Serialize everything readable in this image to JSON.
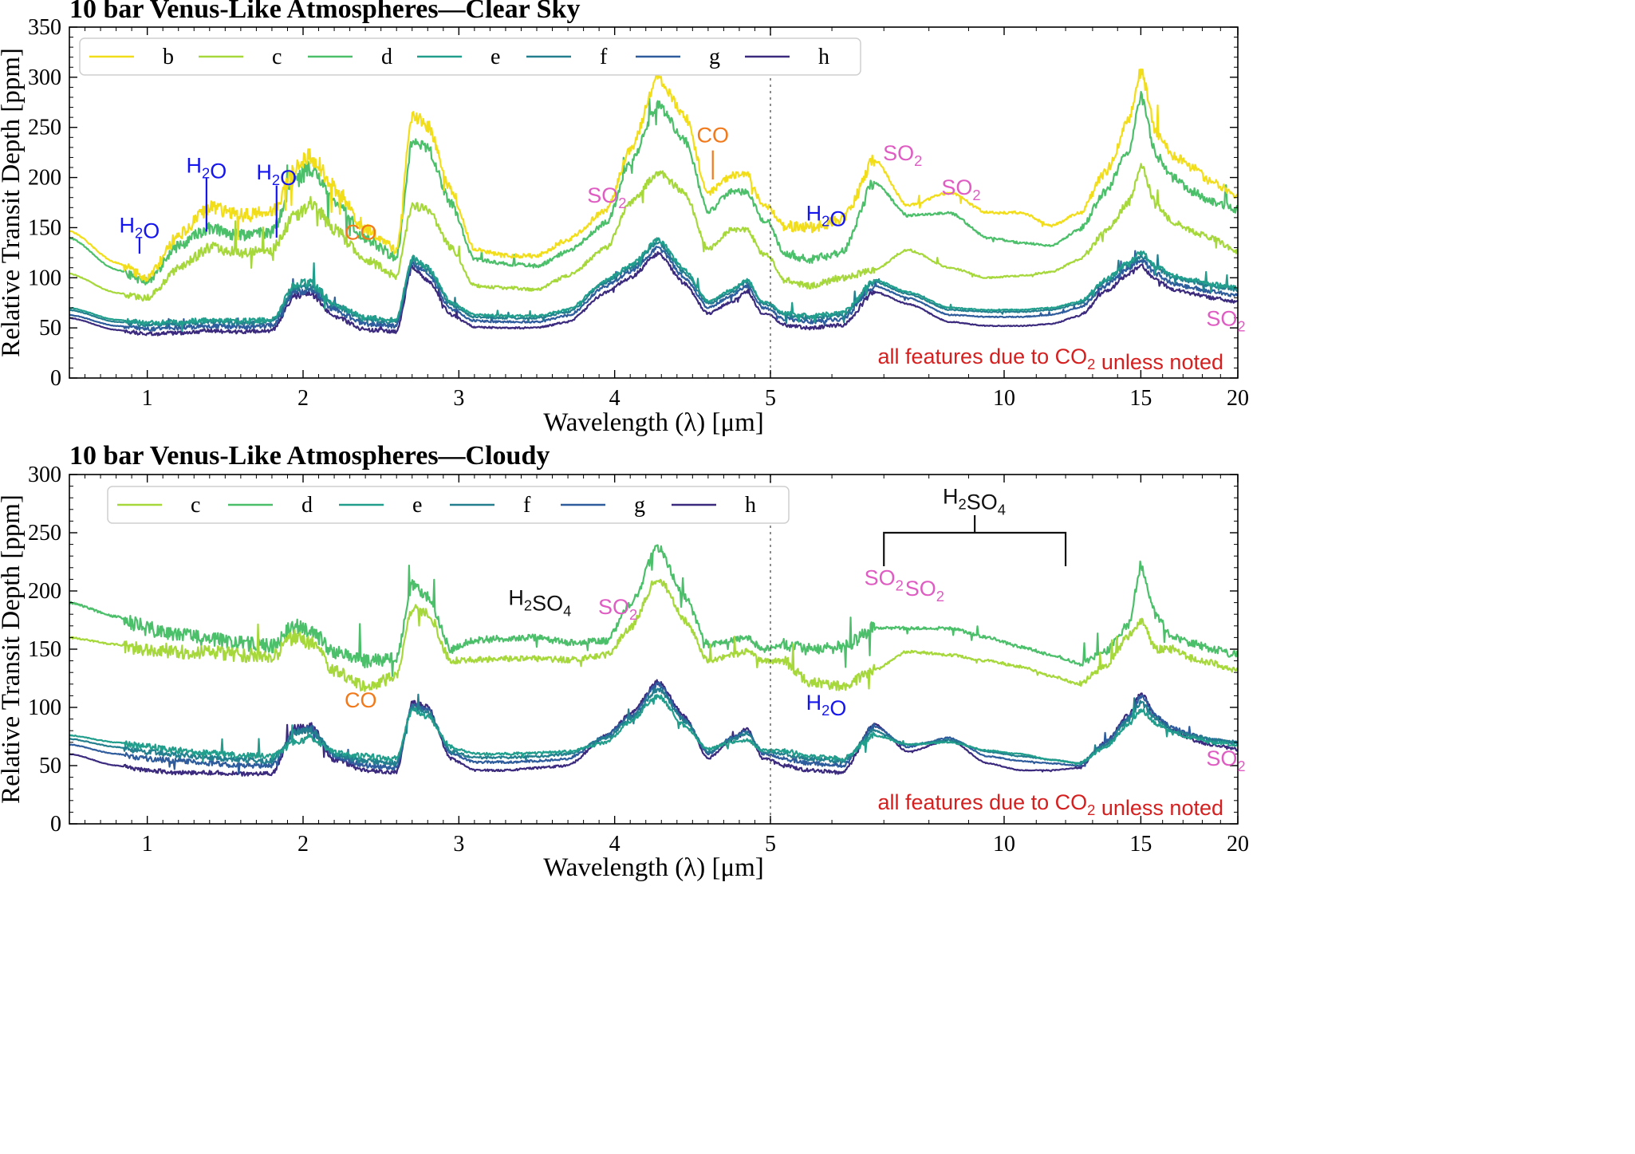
{
  "colors": {
    "b": "#f2dd1a",
    "c": "#a6d83c",
    "d": "#4cbf6a",
    "e": "#229e8c",
    "f": "#237f8e",
    "g": "#2f5c9c",
    "h": "#3b2a7d",
    "h2o": "#1515ee",
    "co": "#f2791a",
    "so2": "#df5cc2",
    "note": "#d61f1f",
    "h2so4": "#111111"
  },
  "chart_data": [
    {
      "type": "line",
      "title": "10 bar Venus-Like Atmospheres—Clear Sky",
      "xlabel": "Wavelength (λ) [μm]",
      "ylabel": "Relative Transit Depth [ppm]",
      "xscale": "piecewise: linear 0.5-5 μm, log 5-20 μm",
      "ylim": [
        0,
        350
      ],
      "yticks": [
        "0",
        "50",
        "100",
        "150",
        "200",
        "250",
        "300",
        "350"
      ],
      "xticks": [
        "1",
        "2",
        "3",
        "4",
        "5",
        "10",
        "15",
        "20"
      ],
      "legend_location": "top-left",
      "note": "all features due to CO₂ unless noted",
      "divider_at_um": 5,
      "x_um": [
        0.5,
        0.8,
        1.0,
        1.2,
        1.4,
        1.6,
        1.8,
        1.95,
        2.05,
        2.2,
        2.4,
        2.6,
        2.7,
        2.8,
        2.95,
        3.1,
        3.3,
        3.5,
        3.7,
        3.95,
        4.1,
        4.28,
        4.45,
        4.6,
        4.75,
        4.85,
        4.95,
        5.2,
        5.6,
        6.2,
        6.8,
        7.5,
        8.5,
        9.5,
        10.5,
        11.5,
        12.5,
        13.5,
        14.5,
        15.0,
        15.7,
        16.5,
        17.5,
        18.5,
        20.0
      ],
      "series": [
        {
          "name": "b",
          "values": [
            147,
            115,
            100,
            142,
            170,
            162,
            165,
            208,
            222,
            190,
            150,
            128,
            262,
            252,
            188,
            128,
            122,
            122,
            138,
            168,
            228,
            300,
            262,
            185,
            202,
            203,
            172,
            152,
            150,
            158,
            218,
            172,
            185,
            165,
            165,
            152,
            165,
            205,
            258,
            306,
            245,
            222,
            210,
            195,
            182
          ]
        },
        {
          "name": "c",
          "values": [
            104,
            85,
            80,
            110,
            130,
            125,
            128,
            162,
            175,
            148,
            118,
            102,
            172,
            168,
            130,
            92,
            90,
            88,
            102,
            130,
            175,
            205,
            185,
            128,
            148,
            148,
            124,
            98,
            92,
            100,
            108,
            128,
            110,
            100,
            102,
            106,
            118,
            146,
            176,
            212,
            172,
            156,
            146,
            140,
            126
          ]
        },
        {
          "name": "d",
          "values": [
            140,
            108,
            96,
            132,
            150,
            142,
            145,
            196,
            210,
            178,
            140,
            120,
            236,
            230,
            174,
            118,
            114,
            112,
            126,
            155,
            215,
            272,
            238,
            166,
            186,
            186,
            158,
            125,
            118,
            126,
            196,
            162,
            165,
            140,
            135,
            132,
            148,
            186,
            228,
            280,
            222,
            200,
            186,
            176,
            168
          ]
        },
        {
          "name": "e",
          "values": [
            70,
            58,
            55,
            56,
            58,
            57,
            58,
            94,
            95,
            74,
            60,
            58,
            120,
            110,
            75,
            63,
            62,
            62,
            68,
            98,
            112,
            138,
            108,
            76,
            88,
            98,
            76,
            65,
            62,
            65,
            98,
            86,
            70,
            68,
            68,
            70,
            76,
            98,
            116,
            125,
            112,
            102,
            98,
            94,
            90
          ]
        },
        {
          "name": "f",
          "values": [
            68,
            56,
            53,
            54,
            56,
            55,
            56,
            90,
            92,
            72,
            58,
            56,
            118,
            108,
            73,
            61,
            60,
            60,
            66,
            96,
            110,
            135,
            105,
            74,
            86,
            96,
            74,
            63,
            60,
            63,
            96,
            84,
            68,
            66,
            66,
            68,
            74,
            96,
            114,
            122,
            110,
            100,
            96,
            92,
            88
          ]
        },
        {
          "name": "g",
          "values": [
            63,
            52,
            49,
            50,
            52,
            51,
            52,
            86,
            88,
            68,
            54,
            52,
            114,
            104,
            69,
            57,
            56,
            56,
            62,
            92,
            106,
            130,
            100,
            70,
            82,
            92,
            70,
            59,
            56,
            59,
            92,
            80,
            63,
            61,
            61,
            63,
            70,
            92,
            110,
            118,
            104,
            94,
            90,
            86,
            82
          ]
        },
        {
          "name": "h",
          "values": [
            60,
            48,
            44,
            45,
            47,
            46,
            47,
            82,
            84,
            62,
            48,
            46,
            110,
            98,
            63,
            51,
            50,
            50,
            56,
            86,
            100,
            124,
            94,
            64,
            76,
            86,
            64,
            53,
            50,
            53,
            86,
            74,
            56,
            52,
            52,
            54,
            62,
            86,
            104,
            112,
            98,
            88,
            84,
            80,
            76
          ]
        }
      ],
      "annotations": [
        {
          "text": "H₂O",
          "x_um": 0.95,
          "y": 145,
          "color": "h2o"
        },
        {
          "text": "H₂O",
          "x_um": 1.38,
          "y": 205,
          "color": "h2o"
        },
        {
          "text": "H₂O",
          "x_um": 1.83,
          "y": 198,
          "color": "h2o"
        },
        {
          "text": "CO",
          "x_um": 2.37,
          "y": 138,
          "color": "co"
        },
        {
          "text": "SO₂",
          "x_um": 3.95,
          "y": 175,
          "color": "so2"
        },
        {
          "text": "CO",
          "x_um": 4.63,
          "y": 235,
          "color": "co"
        },
        {
          "text": "H₂O",
          "x_um": 5.9,
          "y": 157,
          "color": "h2o"
        },
        {
          "text": "SO₂",
          "x_um": 7.4,
          "y": 217,
          "color": "so2"
        },
        {
          "text": "SO₂",
          "x_um": 8.8,
          "y": 183,
          "color": "so2"
        },
        {
          "text": "SO₂",
          "x_um": 19.3,
          "y": 52,
          "color": "so2"
        }
      ]
    },
    {
      "type": "line",
      "title": "10 bar Venus-Like Atmospheres—Cloudy",
      "xlabel": "Wavelength (λ) [μm]",
      "ylabel": "Relative Transit Depth [ppm]",
      "xscale": "piecewise: linear 0.5-5 μm, log 5-20 μm",
      "ylim": [
        0,
        300
      ],
      "yticks": [
        "0",
        "50",
        "100",
        "150",
        "200",
        "250",
        "300"
      ],
      "xticks": [
        "1",
        "2",
        "3",
        "4",
        "5",
        "10",
        "15",
        "20"
      ],
      "legend_location": "top-left",
      "note": "all features due to CO₂ unless noted",
      "divider_at_um": 5,
      "x_um": [
        0.5,
        0.8,
        1.0,
        1.2,
        1.4,
        1.6,
        1.8,
        1.95,
        2.05,
        2.2,
        2.4,
        2.6,
        2.7,
        2.8,
        2.95,
        3.1,
        3.3,
        3.5,
        3.7,
        3.95,
        4.1,
        4.28,
        4.45,
        4.6,
        4.75,
        4.85,
        4.95,
        5.2,
        5.6,
        6.2,
        6.8,
        7.5,
        8.5,
        9.5,
        10.5,
        11.5,
        12.5,
        13.5,
        14.5,
        15.0,
        15.7,
        16.5,
        17.5,
        18.5,
        20.0
      ],
      "series": [
        {
          "name": "c",
          "values": [
            160,
            154,
            150,
            148,
            147,
            145,
            144,
            160,
            155,
            132,
            118,
            126,
            185,
            182,
            140,
            141,
            142,
            142,
            141,
            145,
            168,
            212,
            175,
            140,
            145,
            148,
            140,
            140,
            122,
            118,
            132,
            148,
            145,
            140,
            135,
            127,
            120,
            136,
            162,
            175,
            150,
            150,
            142,
            138,
            132
          ]
        },
        {
          "name": "d",
          "values": [
            190,
            178,
            168,
            162,
            158,
            155,
            153,
            170,
            165,
            148,
            140,
            142,
            206,
            195,
            150,
            158,
            159,
            160,
            156,
            157,
            188,
            238,
            195,
            154,
            157,
            160,
            150,
            154,
            150,
            152,
            168,
            168,
            168,
            160,
            152,
            145,
            138,
            148,
            172,
            222,
            178,
            160,
            155,
            150,
            145
          ]
        },
        {
          "name": "e",
          "values": [
            76,
            70,
            66,
            63,
            61,
            59,
            58,
            70,
            74,
            61,
            58,
            56,
            98,
            92,
            66,
            60,
            60,
            61,
            62,
            70,
            88,
            110,
            84,
            64,
            70,
            72,
            63,
            63,
            58,
            56,
            76,
            68,
            70,
            63,
            60,
            55,
            52,
            66,
            86,
            98,
            86,
            78,
            74,
            70,
            68
          ]
        },
        {
          "name": "f",
          "values": [
            73,
            66,
            62,
            59,
            57,
            55,
            54,
            78,
            80,
            60,
            54,
            52,
            100,
            96,
            62,
            57,
            57,
            58,
            60,
            74,
            90,
            116,
            88,
            62,
            72,
            78,
            62,
            60,
            56,
            54,
            80,
            68,
            72,
            62,
            58,
            55,
            52,
            68,
            90,
            104,
            90,
            80,
            76,
            72,
            70
          ]
        },
        {
          "name": "g",
          "values": [
            68,
            60,
            56,
            54,
            52,
            50,
            50,
            80,
            82,
            58,
            50,
            48,
            102,
            98,
            60,
            53,
            53,
            54,
            56,
            76,
            92,
            120,
            90,
            60,
            74,
            80,
            60,
            56,
            52,
            50,
            84,
            66,
            74,
            58,
            54,
            52,
            50,
            70,
            92,
            110,
            92,
            82,
            76,
            72,
            70
          ]
        },
        {
          "name": "h",
          "values": [
            60,
            50,
            46,
            44,
            44,
            43,
            43,
            82,
            84,
            55,
            46,
            44,
            104,
            100,
            56,
            46,
            46,
            48,
            50,
            76,
            94,
            122,
            92,
            56,
            72,
            82,
            56,
            50,
            46,
            44,
            86,
            62,
            72,
            52,
            46,
            46,
            48,
            70,
            94,
            112,
            92,
            80,
            72,
            68,
            64
          ]
        }
      ],
      "annotations": [
        {
          "text": "H₂SO₄",
          "x_um": 3.52,
          "y": 188,
          "color": "h2so4"
        },
        {
          "text": "SO₂",
          "x_um": 4.02,
          "y": 180,
          "color": "so2"
        },
        {
          "text": "CO",
          "x_um": 2.37,
          "y": 100,
          "color": "co"
        },
        {
          "text": "H₂O",
          "x_um": 5.9,
          "y": 98,
          "color": "h2o"
        },
        {
          "text": "SO₂",
          "x_um": 7.0,
          "y": 205,
          "color": "so2"
        },
        {
          "text": "SO₂",
          "x_um": 7.9,
          "y": 196,
          "color": "so2"
        },
        {
          "text": "H₂SO₄",
          "x_um": 9.15,
          "y": 275,
          "color": "h2so4"
        },
        {
          "text": "SO₂",
          "x_um": 19.3,
          "y": 50,
          "color": "so2"
        }
      ],
      "bracket": {
        "label": "H₂SO₄",
        "x_start_um": 7.0,
        "x_end_um": 12.0,
        "y": 250
      }
    }
  ]
}
